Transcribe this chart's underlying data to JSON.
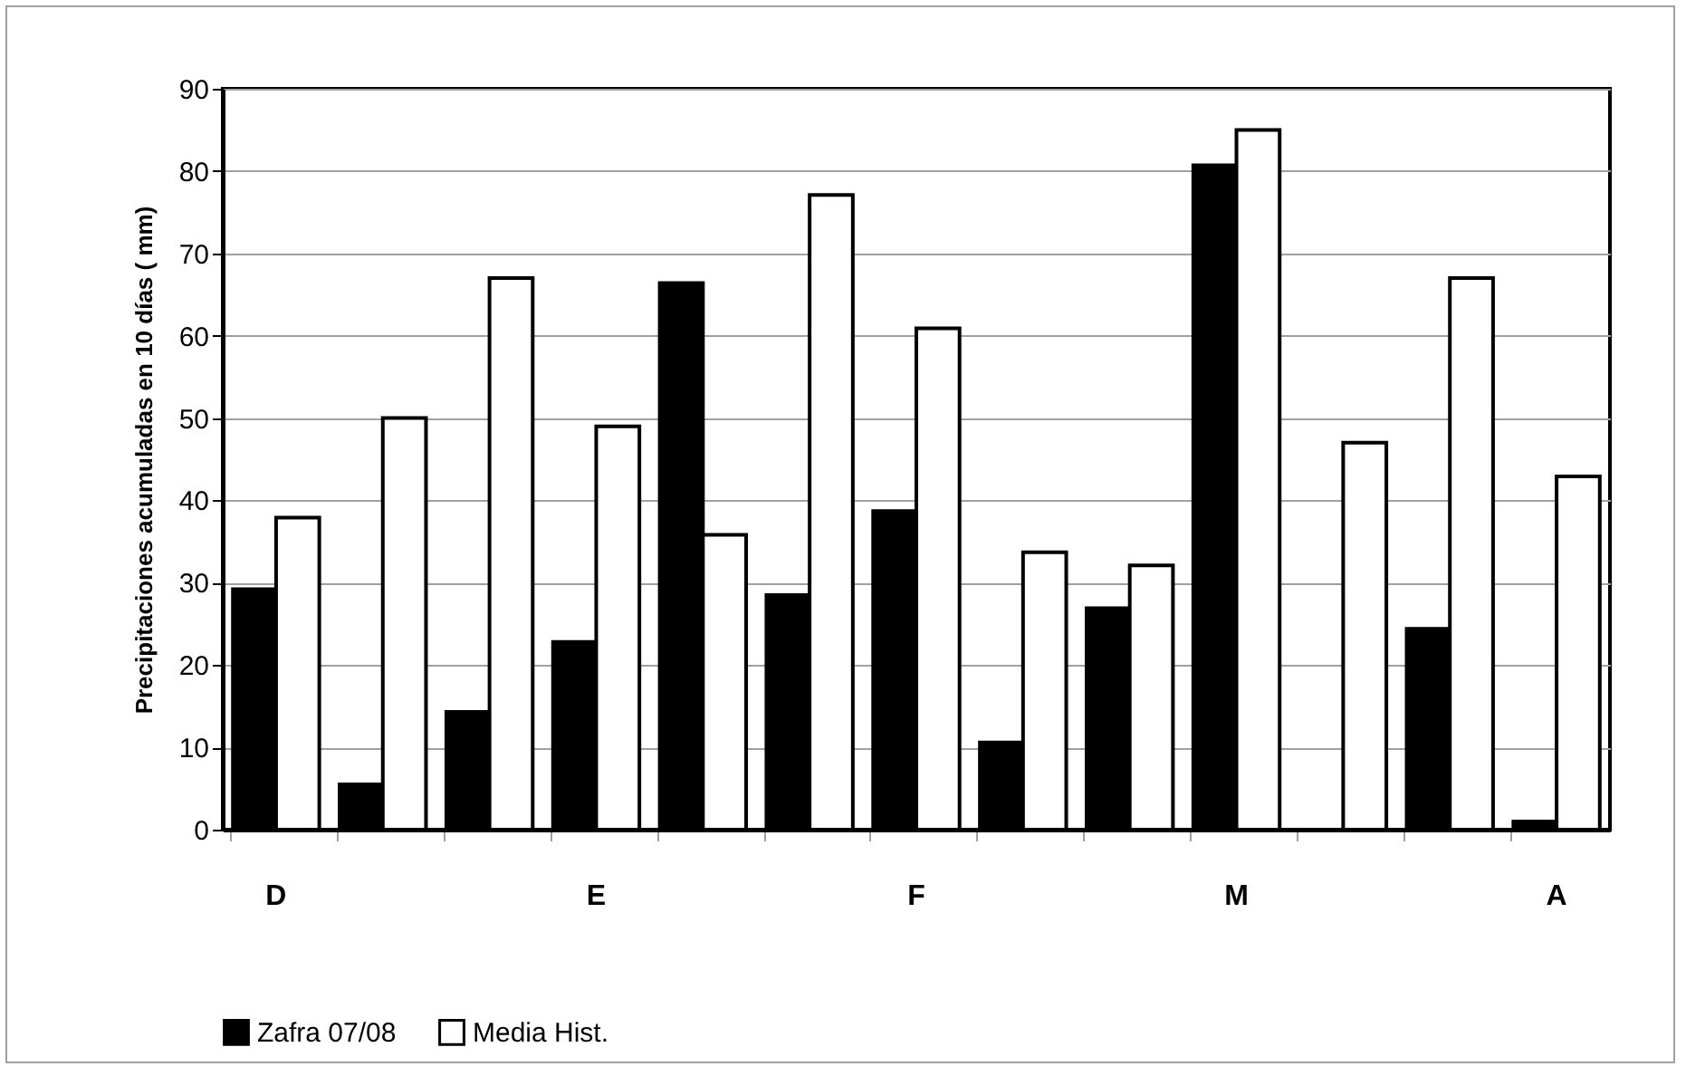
{
  "chart_data": {
    "type": "bar",
    "ylabel": "Precipitaciones acumuladas en 10 días ( mm)",
    "categories": [
      "D",
      null,
      null,
      "E",
      null,
      null,
      "F",
      null,
      null,
      "M",
      null,
      null,
      "A"
    ],
    "series": [
      {
        "name": "Zafra 07/08",
        "color": "#000000",
        "values": [
          29.2,
          5.5,
          14.3,
          22.8,
          66.4,
          28.5,
          38.7,
          10.6,
          26.9,
          80.7,
          0,
          24.4,
          1
        ]
      },
      {
        "name": "Media Hist.",
        "color": "#ffffff",
        "values": [
          37.9,
          50,
          67,
          49,
          35.8,
          77.1,
          60.9,
          33.7,
          32.1,
          85,
          47,
          67,
          42.9
        ]
      }
    ],
    "ylim": [
      0,
      90
    ],
    "yticks": [
      0,
      10,
      20,
      30,
      40,
      50,
      60,
      70,
      80,
      90
    ],
    "grid": "y",
    "legend": "bottom"
  }
}
